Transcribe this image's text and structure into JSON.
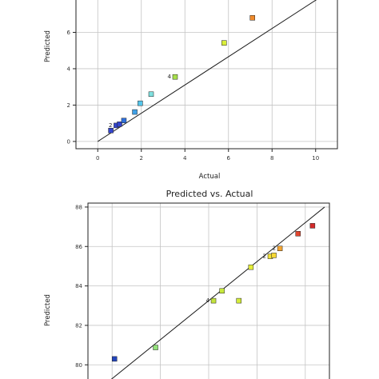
{
  "chart_data": [
    {
      "type": "scatter",
      "title": "",
      "xlabel": "Actual",
      "ylabel": "Predicted",
      "xlim": [
        -1,
        11
      ],
      "ylim": [
        -0.4,
        8
      ],
      "xticks": [
        "0",
        "2",
        "4",
        "6",
        "8",
        "10"
      ],
      "yticks": [
        "0",
        "2",
        "4",
        "6"
      ],
      "grid": true,
      "fit_line": [
        [
          0,
          0
        ],
        [
          10.3,
          8.0
        ]
      ],
      "points": [
        {
          "x": 0.6,
          "y": 0.6,
          "color": "#3344cc"
        },
        {
          "x": 0.85,
          "y": 0.88,
          "color": "#3344cc",
          "label": "2"
        },
        {
          "x": 1.0,
          "y": 0.95,
          "color": "#3344cc"
        },
        {
          "x": 1.2,
          "y": 1.15,
          "color": "#2e6fdb"
        },
        {
          "x": 1.7,
          "y": 1.62,
          "color": "#3fa0e6"
        },
        {
          "x": 1.95,
          "y": 2.1,
          "color": "#55c6ec"
        },
        {
          "x": 2.45,
          "y": 2.6,
          "color": "#7fe0df"
        },
        {
          "x": 3.55,
          "y": 3.55,
          "color": "#a8e04c",
          "label": "4"
        },
        {
          "x": 5.8,
          "y": 5.42,
          "color": "#d9ee39"
        },
        {
          "x": 7.1,
          "y": 6.8,
          "color": "#f08a2a"
        }
      ]
    },
    {
      "type": "scatter",
      "title": "Predicted vs. Actual",
      "xlabel": "",
      "ylabel": "Predicted",
      "xlim": [
        79,
        89
      ],
      "ylim": [
        79.2,
        88.2
      ],
      "xticks": [],
      "yticks": [
        "80",
        "82",
        "84",
        "86",
        "88"
      ],
      "grid": true,
      "fit_line": [
        [
          79.9,
          79.2
        ],
        [
          88.8,
          88.0
        ]
      ],
      "points": [
        {
          "x": 80.1,
          "y": 80.3,
          "color": "#2244bb"
        },
        {
          "x": 81.8,
          "y": 80.88,
          "color": "#93e27a"
        },
        {
          "x": 84.2,
          "y": 83.25,
          "color": "#c3e33c",
          "label": "4"
        },
        {
          "x": 84.55,
          "y": 83.75,
          "color": "#c8ea3c"
        },
        {
          "x": 85.25,
          "y": 83.25,
          "color": "#d4ec3a"
        },
        {
          "x": 85.75,
          "y": 84.95,
          "color": "#e5ee38"
        },
        {
          "x": 86.55,
          "y": 85.5,
          "color": "#f3e238",
          "label": "2"
        },
        {
          "x": 86.7,
          "y": 85.55,
          "color": "#f6d835"
        },
        {
          "x": 86.95,
          "y": 85.9,
          "color": "#f2a432",
          "label": "2"
        },
        {
          "x": 87.7,
          "y": 86.65,
          "color": "#e0452e"
        },
        {
          "x": 88.3,
          "y": 87.05,
          "color": "#d42a2a"
        }
      ]
    }
  ]
}
